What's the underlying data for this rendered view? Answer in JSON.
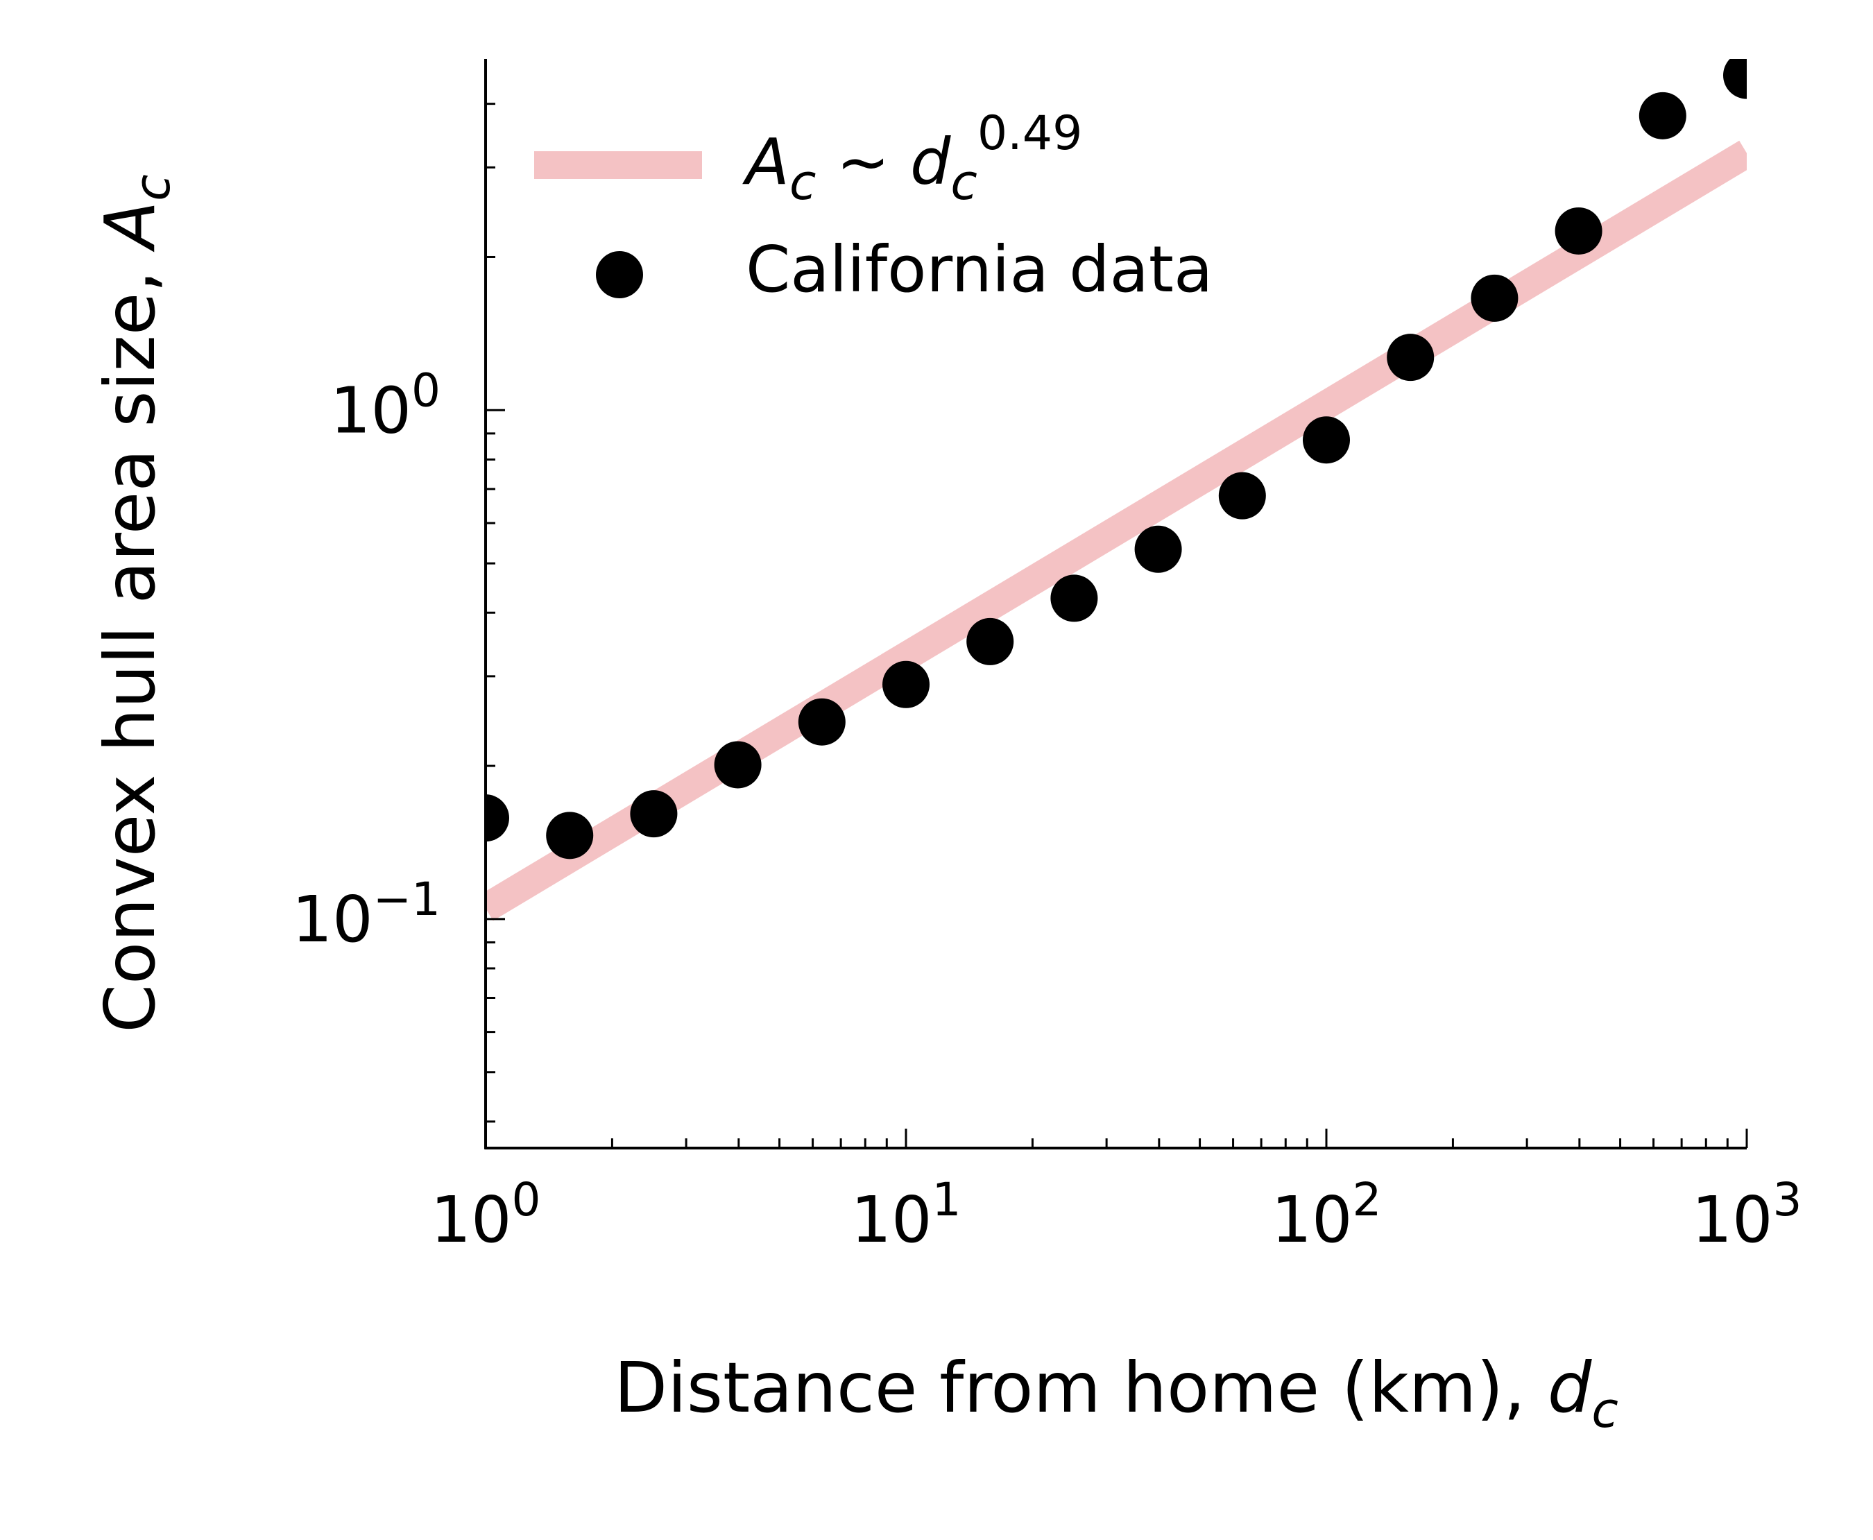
{
  "chart_data": {
    "type": "scatter",
    "xscale": "log",
    "yscale": "log",
    "xlim": [
      1,
      1000
    ],
    "ylim": [
      0.03548,
      4.9
    ],
    "xlabel": {
      "text": "Distance from home (km), ",
      "var": "d",
      "sub": "c"
    },
    "ylabel": {
      "text": "Convex hull area size, ",
      "var": "A",
      "sub": "c"
    },
    "x_major_ticks": [
      {
        "value": 1,
        "base": "10",
        "exp": "0"
      },
      {
        "value": 10,
        "base": "10",
        "exp": "1"
      },
      {
        "value": 100,
        "base": "10",
        "exp": "2"
      },
      {
        "value": 1000,
        "base": "10",
        "exp": "3"
      }
    ],
    "y_major_ticks": [
      {
        "value": 0.1,
        "base": "10",
        "exp": "−1"
      },
      {
        "value": 1,
        "base": "10",
        "exp": "0"
      }
    ],
    "fit_line": {
      "name": {
        "var": "A",
        "sub": "c",
        "sim": " ~ ",
        "var2": "d",
        "sub2": "c",
        "exp": "0.49"
      },
      "exponent": 0.49,
      "x": [
        1,
        1000
      ],
      "y": [
        0.105,
        3.2
      ],
      "color": "#f4c2c4"
    },
    "series": [
      {
        "name": "California data",
        "color": "#000000",
        "x": [
          1,
          1.585,
          2.512,
          3.981,
          6.31,
          10,
          15.85,
          25.12,
          39.81,
          63.1,
          100,
          158.5,
          251.2,
          398.1,
          631,
          1000
        ],
        "y": [
          0.158,
          0.146,
          0.161,
          0.201,
          0.244,
          0.289,
          0.351,
          0.427,
          0.533,
          0.679,
          0.874,
          1.27,
          1.66,
          2.25,
          3.79,
          4.55
        ]
      }
    ],
    "legend": "upper-left",
    "grid": false
  }
}
